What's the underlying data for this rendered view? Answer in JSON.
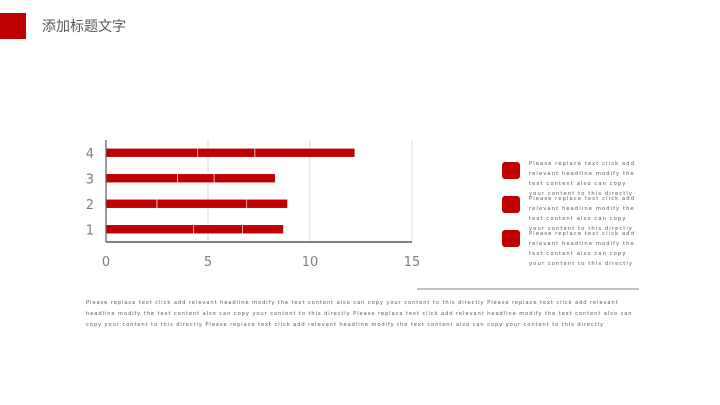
{
  "header": {
    "title": "添加标题文字"
  },
  "chart_data": {
    "type": "bar",
    "orientation": "horizontal",
    "stacked": true,
    "categories": [
      "1",
      "2",
      "3",
      "4"
    ],
    "series": [
      {
        "values": [
          4.3,
          2.5,
          3.5,
          4.5
        ]
      },
      {
        "values": [
          2.4,
          4.4,
          1.8,
          2.8
        ]
      },
      {
        "values": [
          2.0,
          2.0,
          3.0,
          4.9
        ]
      }
    ],
    "xticks": [
      "0",
      "5",
      "10",
      "15"
    ],
    "xlim": [
      0,
      15
    ],
    "grid": true,
    "colors": {
      "bar": "#c00000",
      "gridline": "#d9d9d9",
      "axis": "#595959"
    }
  },
  "bullets": [
    {
      "text": "Please replace text click add relevant headline modify the text content also can copy your content to this directly"
    },
    {
      "text": "Please replace text click add relevant headline modify the text content also can copy your content to this directly"
    },
    {
      "text": "Please replace text click add relevant headline modify the text content also can copy your content to this directly"
    }
  ],
  "body": {
    "paragraph": "Please replace text click add relevant headline modify the text content also can copy your content to this directly Please replace text click add relevant headline modify the text content also can copy your content to this directly Please replace text click add relevant headline modify the text content also can copy your content to this directly Please replace text click add relevant headline modify the text content also can copy your content to this directly"
  }
}
